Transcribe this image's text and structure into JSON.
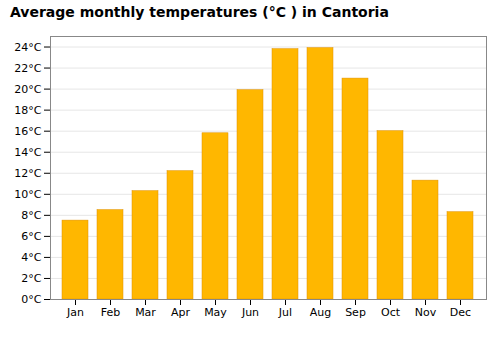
{
  "chart_data": {
    "type": "bar",
    "title": "Average monthly temperatures (°C ) in Cantoria",
    "categories": [
      "Jan",
      "Feb",
      "Mar",
      "Apr",
      "May",
      "Jun",
      "Jul",
      "Aug",
      "Sep",
      "Oct",
      "Nov",
      "Dec"
    ],
    "values": [
      7.5,
      8.5,
      10.3,
      12.2,
      15.8,
      19.9,
      23.8,
      23.9,
      21.0,
      16.0,
      11.3,
      8.3
    ],
    "color": "#FFB700",
    "ylim": [
      0,
      25
    ],
    "yticks": [
      {
        "value": 0,
        "label": "0°C"
      },
      {
        "value": 2,
        "label": "2°C"
      },
      {
        "value": 4,
        "label": "4°C"
      },
      {
        "value": 6,
        "label": "6°C"
      },
      {
        "value": 8,
        "label": "8°C"
      },
      {
        "value": 10,
        "label": "10°C"
      },
      {
        "value": 12,
        "label": "12°C"
      },
      {
        "value": 14,
        "label": "14°C"
      },
      {
        "value": 16,
        "label": "16°C"
      },
      {
        "value": 18,
        "label": "18°C"
      },
      {
        "value": 20,
        "label": "20°C"
      },
      {
        "value": 22,
        "label": "22°C"
      },
      {
        "value": 24,
        "label": "24°C"
      }
    ],
    "grid": true
  }
}
